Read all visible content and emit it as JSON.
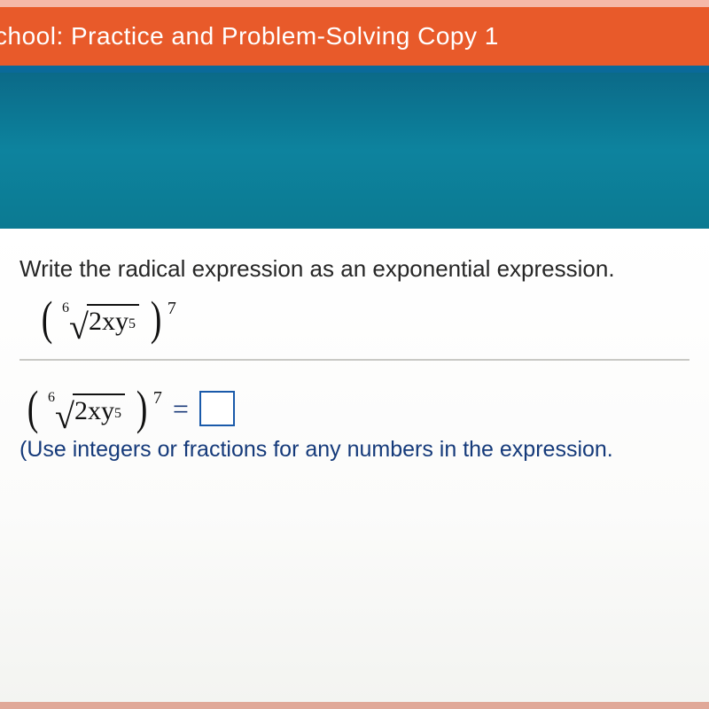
{
  "titlebar": {
    "text": "chool: Practice and Problem-Solving Copy 1",
    "bg_color": "#e85a2a",
    "text_color": "#ffffff"
  },
  "bands": {
    "stripe_color": "#0a6a9a",
    "teal_color": "#0d839e"
  },
  "problem": {
    "prompt": "Write the radical expression as an exponential expression.",
    "radical_index": "6",
    "radicand_coeff": "2xy",
    "radicand_exp": "5",
    "outer_exp": "7"
  },
  "answer": {
    "radical_index": "6",
    "radicand_coeff": "2xy",
    "radicand_exp": "5",
    "outer_exp": "7",
    "equals": "=",
    "hint": "(Use integers or fractions for any numbers in the expression."
  },
  "colors": {
    "text": "#262626",
    "math": "#111111",
    "hint": "#153a7a",
    "input_border": "#1a5aaa",
    "rule": "#c9c9c5",
    "content_bg": "#ffffff"
  },
  "typography": {
    "prompt_fontsize": 26,
    "math_fontsize": 34,
    "hint_fontsize": 25
  }
}
